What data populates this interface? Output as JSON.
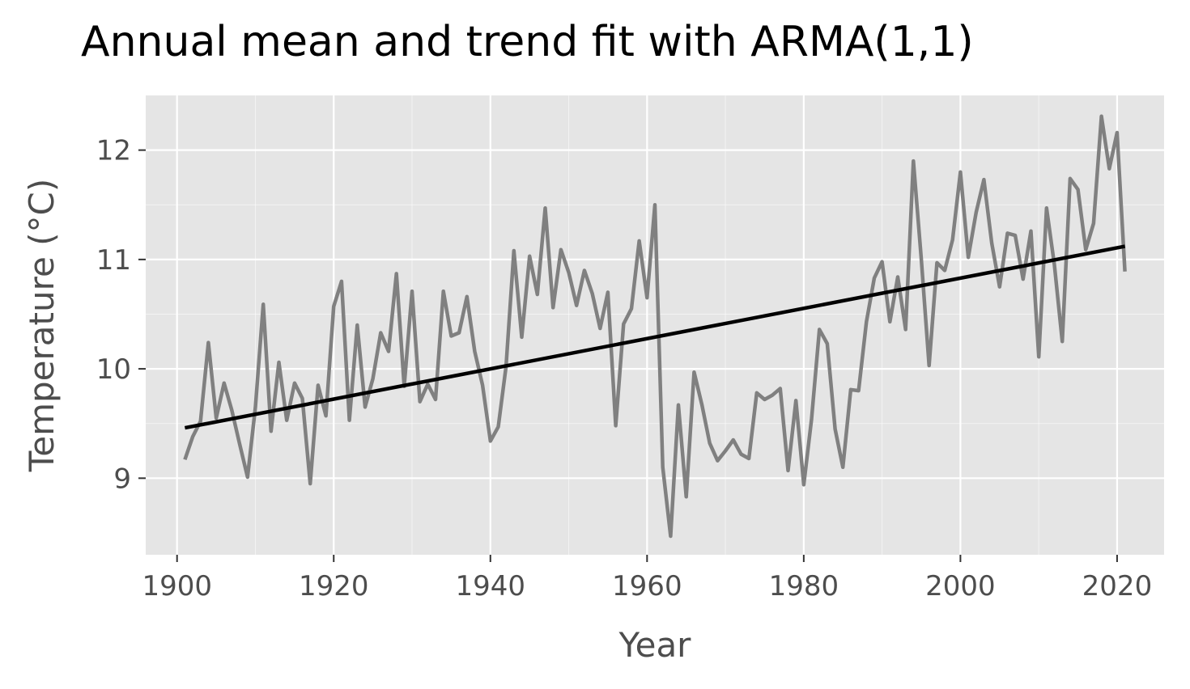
{
  "chart_data": {
    "type": "line",
    "title": "Annual mean and trend fit with ARMA(1,1)",
    "xlabel": "Year",
    "ylabel": "Temperature (°C)",
    "xlim": [
      1896,
      2026
    ],
    "ylim": [
      8.3,
      12.5
    ],
    "xticks": [
      1900,
      1920,
      1940,
      1960,
      1980,
      2000,
      2020
    ],
    "yticks": [
      9,
      10,
      11,
      12
    ],
    "grid": true,
    "legend": "none",
    "colors": {
      "background": "#e5e5e5",
      "grid": "#ffffff",
      "observed": "#808080",
      "trend": "#000000"
    },
    "series": [
      {
        "x": [
          1901,
          1902,
          1903,
          1904,
          1905,
          1906,
          1907,
          1908,
          1909,
          1910,
          1911,
          1912,
          1913,
          1914,
          1915,
          1916,
          1917,
          1918,
          1919,
          1920,
          1921,
          1922,
          1923,
          1924,
          1925,
          1926,
          1927,
          1928,
          1929,
          1930,
          1931,
          1932,
          1933,
          1934,
          1935,
          1936,
          1937,
          1938,
          1939,
          1940,
          1941,
          1942,
          1943,
          1944,
          1945,
          1946,
          1947,
          1948,
          1949,
          1950,
          1951,
          1952,
          1953,
          1954,
          1955,
          1956,
          1957,
          1958,
          1959,
          1960,
          1961,
          1962,
          1963,
          1964,
          1965,
          1966,
          1967,
          1968,
          1969,
          1970,
          1971,
          1972,
          1973,
          1974,
          1975,
          1976,
          1977,
          1978,
          1979,
          1980,
          1981,
          1982,
          1983,
          1984,
          1985,
          1986,
          1987,
          1988,
          1989,
          1990,
          1991,
          1992,
          1993,
          1994,
          1995,
          1996,
          1997,
          1998,
          1999,
          2000,
          2001,
          2002,
          2003,
          2004,
          2005,
          2006,
          2007,
          2008,
          2009,
          2010,
          2011,
          2012,
          2013,
          2014,
          2015,
          2016,
          2017,
          2018,
          2019,
          2020,
          2021
        ],
        "values": [
          9.17,
          9.38,
          9.52,
          10.24,
          9.55,
          9.87,
          9.62,
          9.31,
          9.01,
          9.65,
          10.59,
          9.43,
          10.06,
          9.53,
          9.87,
          9.73,
          8.95,
          9.85,
          9.57,
          10.57,
          10.8,
          9.53,
          10.4,
          9.65,
          9.91,
          10.33,
          10.16,
          10.87,
          9.84,
          10.71,
          9.7,
          9.86,
          9.72,
          10.71,
          10.3,
          10.33,
          10.66,
          10.16,
          9.85,
          9.34,
          9.47,
          10.02,
          11.08,
          10.29,
          11.03,
          10.68,
          11.47,
          10.56,
          11.09,
          10.88,
          10.58,
          10.9,
          10.69,
          10.37,
          10.7,
          9.48,
          10.41,
          10.55,
          11.17,
          10.65,
          11.5,
          9.1,
          8.47,
          9.67,
          8.83,
          9.97,
          9.67,
          9.32,
          9.16,
          9.25,
          9.35,
          9.22,
          9.18,
          9.78,
          9.72,
          9.76,
          9.82,
          9.07,
          9.71,
          8.94,
          9.54,
          10.36,
          10.23,
          9.45,
          9.1,
          9.81,
          9.8,
          10.43,
          10.83,
          10.98,
          10.43,
          10.84,
          10.36,
          11.9,
          11.01,
          10.03,
          10.97,
          10.9,
          11.18,
          11.8,
          11.02,
          11.43,
          11.73,
          11.15,
          10.75,
          11.24,
          11.22,
          10.82,
          11.26,
          10.11,
          11.47,
          10.95,
          10.25,
          11.74,
          11.64,
          11.09,
          11.33,
          12.31,
          11.83,
          12.16,
          10.89
        ]
      },
      {
        "x": [
          1901,
          2021
        ],
        "values": [
          9.46,
          11.12
        ]
      }
    ]
  }
}
